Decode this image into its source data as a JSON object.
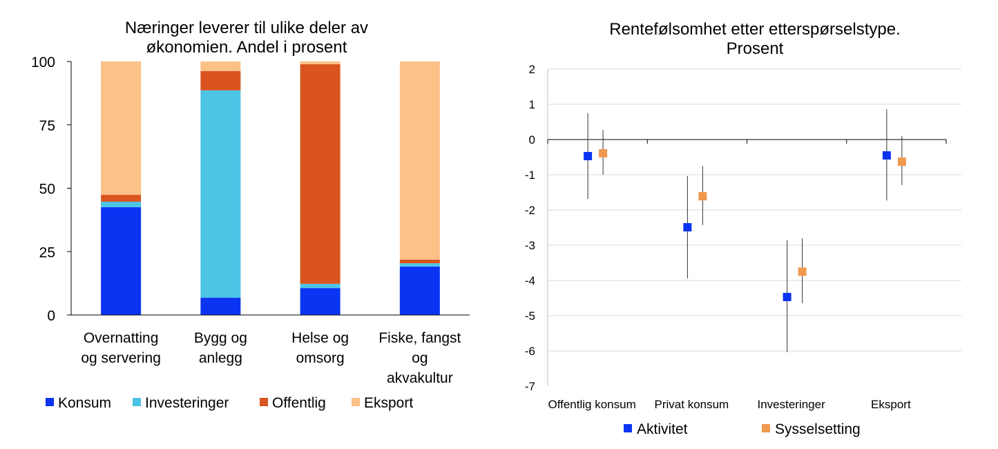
{
  "chart_data": [
    {
      "type": "bar",
      "stacked": true,
      "title": "Næringer leverer til ulike deler av økonomien. Andel i prosent",
      "title_lines": [
        "Næringer leverer til ulike deler av",
        "økonomien. Andel i prosent"
      ],
      "categories": [
        "Overnatting og servering",
        "Bygg og anlegg",
        "Helse og omsorg",
        "Fiske, fangst og akvakultur"
      ],
      "category_lines": [
        [
          "Overnatting",
          "og servering"
        ],
        [
          "Bygg og",
          "anlegg"
        ],
        [
          "Helse og",
          "omsorg"
        ],
        [
          "Fiske, fangst",
          "og",
          "akvakultur"
        ]
      ],
      "ylim": [
        0,
        100
      ],
      "yticks": [
        0,
        25,
        50,
        75,
        100
      ],
      "grid": false,
      "legend_placement": "bottom",
      "series": [
        {
          "name": "Konsum",
          "color": "#0b34f2",
          "values": [
            42.5,
            6.8,
            10.6,
            19.1
          ]
        },
        {
          "name": "Investeringer",
          "color": "#4dc3e5",
          "values": [
            2.2,
            81.8,
            1.7,
            1.3
          ]
        },
        {
          "name": "Offentlig",
          "color": "#d9541e",
          "values": [
            2.7,
            7.6,
            86.6,
            1.4
          ]
        },
        {
          "name": "Eksport",
          "color": "#fbc187",
          "values": [
            52.6,
            3.8,
            1.1,
            78.2
          ]
        }
      ]
    },
    {
      "type": "scatter",
      "error_bars": true,
      "title": "Rentefølsomhet etter etterspørselstype. Prosent",
      "title_lines": [
        "Rentefølsomhet etter etterspørselstype.",
        "Prosent"
      ],
      "categories": [
        "Offentlig konsum",
        "Privat konsum",
        "Investeringer",
        "Eksport"
      ],
      "ylim": [
        -7,
        2
      ],
      "yticks": [
        2,
        1,
        0,
        -1,
        -2,
        -3,
        -4,
        -5,
        -6,
        -7
      ],
      "grid": true,
      "legend_placement": "bottom",
      "series": [
        {
          "name": "Aktivitet",
          "color": "#0b34f2",
          "values": [
            -0.47,
            -2.49,
            -4.47,
            -0.45
          ],
          "upper": [
            0.75,
            -1.04,
            -2.86,
            0.86
          ],
          "lower": [
            -1.69,
            -3.94,
            -6.04,
            -1.73
          ]
        },
        {
          "name": "Sysselsetting",
          "color": "#f0984e",
          "values": [
            -0.39,
            -1.61,
            -3.75,
            -0.63
          ],
          "upper": [
            0.27,
            -0.75,
            -2.8,
            0.1
          ],
          "lower": [
            -1.0,
            -2.43,
            -4.65,
            -1.29
          ]
        }
      ]
    }
  ]
}
